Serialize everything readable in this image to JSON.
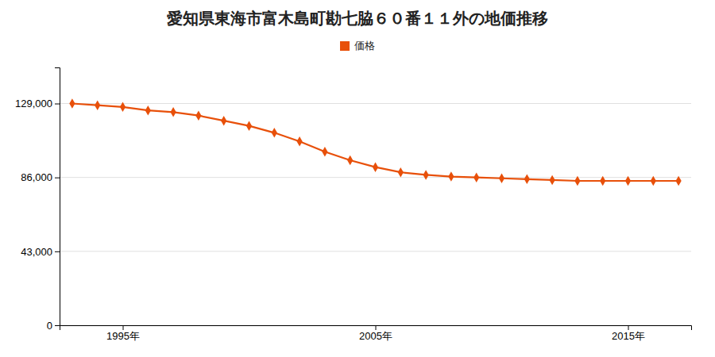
{
  "chart_data": {
    "type": "line",
    "title": "愛知県東海市富木島町勘七脇６０番１１外の地価推移",
    "x": [
      1993,
      1994,
      1995,
      1996,
      1997,
      1998,
      1999,
      2000,
      2001,
      2002,
      2003,
      2004,
      2005,
      2006,
      2007,
      2008,
      2009,
      2010,
      2011,
      2012,
      2013,
      2014,
      2015,
      2016,
      2017
    ],
    "series": [
      {
        "name": "価格",
        "color": "#e8500a",
        "marker": "diamond",
        "values": [
          129000,
          128000,
          127000,
          125000,
          124000,
          122000,
          119000,
          116000,
          112000,
          107000,
          101000,
          96000,
          92000,
          89000,
          87500,
          86500,
          86000,
          85500,
          85000,
          84500,
          84000,
          84000,
          84000,
          84000,
          84000
        ]
      }
    ],
    "xlim": [
      1992.5,
      2017.5
    ],
    "xticks": [
      {
        "value": 1995,
        "label": "1995年"
      },
      {
        "value": 2005,
        "label": "2005年"
      },
      {
        "value": 2015,
        "label": "2015年"
      }
    ],
    "ylim": [
      0,
      150000
    ],
    "yticks": [
      0,
      {
        "value": 43000,
        "label": "43,000"
      },
      {
        "value": 86000,
        "label": "86,000"
      },
      {
        "value": 129000,
        "label": "129,000"
      }
    ],
    "grid": true,
    "legend": "top"
  }
}
